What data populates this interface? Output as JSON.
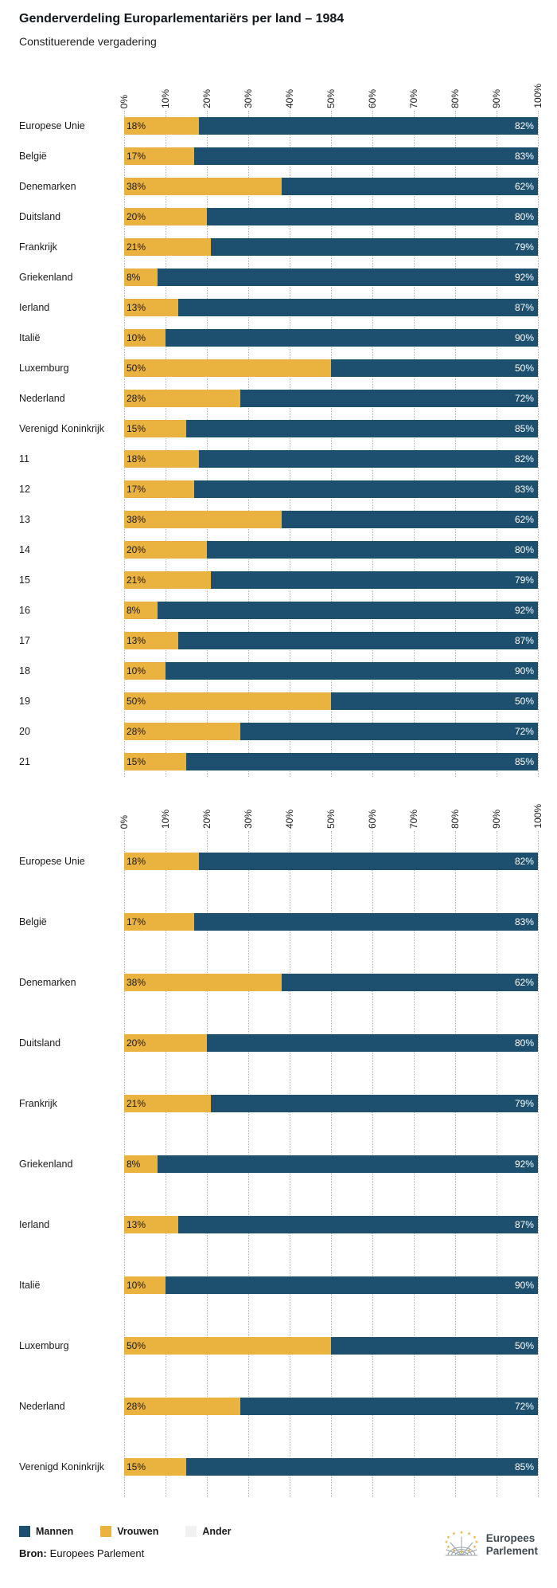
{
  "header": {
    "title": "Genderverdeling Europarlementariërs per land – 1984",
    "subtitle": "Constituerende vergadering"
  },
  "colors": {
    "men": "#1d4f6e",
    "women": "#eab23e",
    "other": "#f1f1ef"
  },
  "legend": [
    {
      "label": "Mannen",
      "key": "men"
    },
    {
      "label": "Vrouwen",
      "key": "women"
    },
    {
      "label": "Ander",
      "key": "other"
    }
  ],
  "source": {
    "label": "Bron:",
    "text": "Europees Parlement"
  },
  "logo": {
    "line1": "Europees",
    "line2": "Parlement"
  },
  "chart_data": [
    {
      "type": "bar",
      "orientation": "horizontal",
      "stacked": true,
      "grid": "dotted-vertical",
      "xlim": [
        0,
        100
      ],
      "unit": "%",
      "x_ticks": [
        "0%",
        "10%",
        "20%",
        "30%",
        "40%",
        "50%",
        "60%",
        "70%",
        "80%",
        "90%",
        "100%"
      ],
      "series_names": [
        "Vrouwen",
        "Mannen"
      ],
      "rows": [
        {
          "label": "Europese Unie",
          "women": 18,
          "men": 82
        },
        {
          "label": "België",
          "women": 17,
          "men": 83
        },
        {
          "label": "Denemarken",
          "women": 38,
          "men": 62
        },
        {
          "label": "Duitsland",
          "women": 20,
          "men": 80
        },
        {
          "label": "Frankrijk",
          "women": 21,
          "men": 79
        },
        {
          "label": "Griekenland",
          "women": 8,
          "men": 92
        },
        {
          "label": "Ierland",
          "women": 13,
          "men": 87
        },
        {
          "label": "Italië",
          "women": 10,
          "men": 90
        },
        {
          "label": "Luxemburg",
          "women": 50,
          "men": 50
        },
        {
          "label": "Nederland",
          "women": 28,
          "men": 72
        },
        {
          "label": "Verenigd Koninkrijk",
          "women": 15,
          "men": 85
        },
        {
          "label": "11",
          "women": 18,
          "men": 82
        },
        {
          "label": "12",
          "women": 17,
          "men": 83
        },
        {
          "label": "13",
          "women": 38,
          "men": 62
        },
        {
          "label": "14",
          "women": 20,
          "men": 80
        },
        {
          "label": "15",
          "women": 21,
          "men": 79
        },
        {
          "label": "16",
          "women": 8,
          "men": 92
        },
        {
          "label": "17",
          "women": 13,
          "men": 87
        },
        {
          "label": "18",
          "women": 10,
          "men": 90
        },
        {
          "label": "19",
          "women": 50,
          "men": 50
        },
        {
          "label": "20",
          "women": 28,
          "men": 72
        },
        {
          "label": "21",
          "women": 15,
          "men": 85
        }
      ]
    },
    {
      "type": "bar",
      "orientation": "horizontal",
      "stacked": true,
      "grid": "dotted-vertical",
      "xlim": [
        0,
        100
      ],
      "unit": "%",
      "x_ticks": [
        "0%",
        "10%",
        "20%",
        "30%",
        "40%",
        "50%",
        "60%",
        "70%",
        "80%",
        "90%",
        "100%"
      ],
      "series_names": [
        "Vrouwen",
        "Mannen"
      ],
      "rows": [
        {
          "label": "Europese Unie",
          "women": 18,
          "men": 82
        },
        {
          "label": "België",
          "women": 17,
          "men": 83
        },
        {
          "label": "Denemarken",
          "women": 38,
          "men": 62
        },
        {
          "label": "Duitsland",
          "women": 20,
          "men": 80
        },
        {
          "label": "Frankrijk",
          "women": 21,
          "men": 79
        },
        {
          "label": "Griekenland",
          "women": 8,
          "men": 92
        },
        {
          "label": "Ierland",
          "women": 13,
          "men": 87
        },
        {
          "label": "Italië",
          "women": 10,
          "men": 90
        },
        {
          "label": "Luxemburg",
          "women": 50,
          "men": 50
        },
        {
          "label": "Nederland",
          "women": 28,
          "men": 72
        },
        {
          "label": "Verenigd Koninkrijk",
          "women": 15,
          "men": 85
        }
      ]
    }
  ]
}
